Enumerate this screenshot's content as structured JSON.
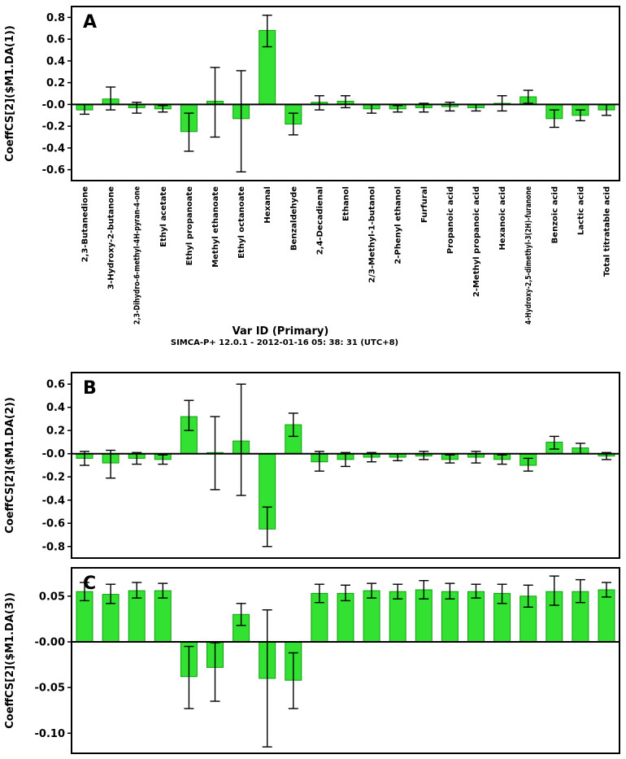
{
  "chart_data": {
    "type": "bar",
    "title": "",
    "xlabel": "Var ID (Primary)",
    "footer": "SIMCA-P+ 12.0.1 - 2012-01-16 05: 38: 31 (UTC+8)",
    "bar_color": "#33e133",
    "bar_edge_color": "#0f9e0f",
    "error_bar_color": "#000000",
    "legend": "none",
    "grid": false,
    "categories": [
      "2,3-Butanedione",
      "3-Hydroxy-2-butanone",
      "2,3-Dihydro-6-methyl-4H-pyran-4-one",
      "Ethyl acetate",
      "Ethyl propanoate",
      "Methyl ethanoate",
      "Ethyl octanoate",
      "Hexanal",
      "Benzaldehyde",
      "2,4-Decadienal",
      "Ethanol",
      "2/3-Methyl-1-butanol",
      "2-Phenyl ethanol",
      "Furfural",
      "Propanoic acid",
      "2-Methyl propanoic acid",
      "Hexanoic acid",
      "4-Hydroxy-2,5-dimethyl-3(2H)-furanone",
      "Benzoic acid",
      "Lactic acid",
      "Total titratable acid"
    ],
    "panels": [
      {
        "label": "A",
        "ylabel": "CoeffCS[2]($M1.DA(1))",
        "ylim": [
          -0.7,
          0.9
        ],
        "yticks": [
          "0.8",
          "0.6",
          "0.4",
          "0.2",
          "-0.0",
          "-0.2",
          "-0.4",
          "-0.6"
        ],
        "values": [
          -0.05,
          0.05,
          -0.03,
          -0.04,
          -0.25,
          0.03,
          -0.13,
          0.68,
          -0.18,
          0.02,
          0.03,
          -0.04,
          -0.04,
          -0.03,
          -0.02,
          -0.03,
          0.01,
          0.07,
          -0.13,
          -0.1,
          -0.05
        ],
        "whisker_low": [
          -0.09,
          -0.05,
          -0.08,
          -0.07,
          -0.43,
          -0.3,
          -0.62,
          0.53,
          -0.28,
          -0.05,
          -0.03,
          -0.08,
          -0.07,
          -0.07,
          -0.06,
          -0.06,
          -0.06,
          0.01,
          -0.21,
          -0.15,
          -0.1
        ],
        "whisker_high": [
          0.0,
          0.16,
          0.02,
          -0.01,
          -0.08,
          0.34,
          0.31,
          0.82,
          -0.08,
          0.08,
          0.08,
          0.0,
          -0.01,
          0.01,
          0.02,
          0.0,
          0.08,
          0.13,
          -0.05,
          -0.05,
          0.0
        ]
      },
      {
        "label": "B",
        "ylabel": "CoeffCS[2]($M1.DA(2))",
        "ylim": [
          -0.9,
          0.7
        ],
        "yticks": [
          "0.6",
          "0.4",
          "0.2",
          "-0.0",
          "-0.2",
          "-0.4",
          "-0.6",
          "-0.8"
        ],
        "values": [
          -0.04,
          -0.08,
          -0.04,
          -0.05,
          0.32,
          0.01,
          0.11,
          -0.65,
          0.25,
          -0.07,
          -0.05,
          -0.03,
          -0.03,
          -0.02,
          -0.05,
          -0.03,
          -0.05,
          -0.1,
          0.1,
          0.05,
          -0.02
        ],
        "whisker_low": [
          -0.1,
          -0.21,
          -0.09,
          -0.09,
          0.2,
          -0.31,
          -0.36,
          -0.8,
          0.15,
          -0.15,
          -0.11,
          -0.07,
          -0.06,
          -0.05,
          -0.08,
          -0.08,
          -0.09,
          -0.15,
          0.04,
          0.0,
          -0.05
        ],
        "whisker_high": [
          0.02,
          0.03,
          0.01,
          -0.01,
          0.46,
          0.32,
          0.6,
          -0.46,
          0.35,
          0.02,
          0.01,
          0.01,
          0.0,
          0.02,
          -0.01,
          0.02,
          -0.01,
          -0.04,
          0.15,
          0.09,
          0.01
        ]
      },
      {
        "label": "C",
        "ylabel": "CoeffCS[2]($M1.DA(3))",
        "ylim": [
          -0.122,
          0.081
        ],
        "yticks": [
          "0.05",
          "-0.00",
          "-0.05",
          "-0.10"
        ],
        "values": [
          0.055,
          0.052,
          0.056,
          0.056,
          -0.038,
          -0.028,
          0.03,
          -0.04,
          -0.042,
          0.053,
          0.053,
          0.056,
          0.055,
          0.057,
          0.055,
          0.055,
          0.053,
          0.05,
          0.055,
          0.055,
          0.057
        ],
        "whisker_low": [
          0.045,
          0.042,
          0.048,
          0.048,
          -0.073,
          -0.065,
          0.018,
          -0.115,
          -0.073,
          0.043,
          0.045,
          0.048,
          0.047,
          0.047,
          0.047,
          0.048,
          0.042,
          0.038,
          0.04,
          0.043,
          0.049
        ],
        "whisker_high": [
          0.065,
          0.063,
          0.065,
          0.064,
          -0.005,
          -0.001,
          0.042,
          0.035,
          -0.012,
          0.063,
          0.062,
          0.064,
          0.063,
          0.067,
          0.064,
          0.063,
          0.063,
          0.062,
          0.072,
          0.068,
          0.065
        ]
      }
    ]
  }
}
